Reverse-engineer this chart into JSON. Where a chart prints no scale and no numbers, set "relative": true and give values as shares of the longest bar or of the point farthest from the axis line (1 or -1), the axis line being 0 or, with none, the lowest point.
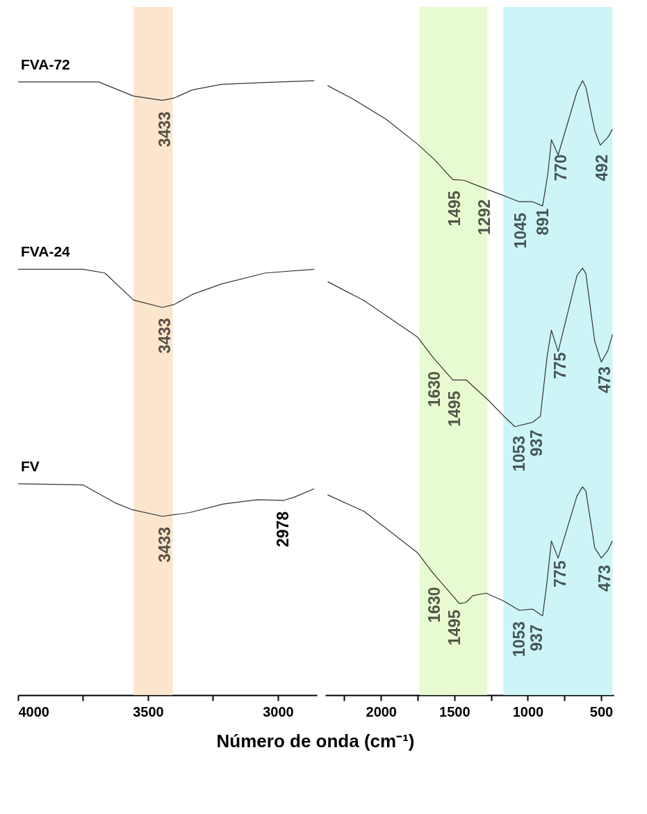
{
  "chart_data": [
    {
      "type": "line",
      "relative": true,
      "xlabel": "Número de onda (cm⁻¹)",
      "xlim": [
        4000,
        2850
      ],
      "xticks": [
        4000,
        {
          "value": 3750,
          "label": null
        },
        3500,
        {
          "value": 3250,
          "label": null
        },
        3000
      ],
      "tick_labels": "x",
      "grid": false,
      "bands": [
        {
          "axis": "x",
          "from": 3555,
          "to": 3405,
          "color": "#fbe3c8"
        }
      ],
      "series": [
        {
          "name": "FVA-72",
          "color": "#333333",
          "x": [
            4000,
            3690,
            3556,
            3445,
            3398,
            3330,
            3218,
            3049,
            2860
          ],
          "values": [
            0.998,
            0.998,
            0.975,
            0.968,
            0.972,
            0.985,
            0.994,
            0.997,
            1
          ]
        },
        {
          "name": "FVA-24",
          "color": "#333333",
          "x": [
            4000,
            3750,
            3666,
            3556,
            3445,
            3398,
            3330,
            3218,
            3049,
            2860
          ],
          "values": [
            0.693,
            0.693,
            0.687,
            0.643,
            0.631,
            0.636,
            0.652,
            0.669,
            0.687,
            0.693
          ]
        },
        {
          "name": "FV",
          "color": "#333333",
          "x": [
            4000,
            3749,
            3627,
            3562,
            3445,
            3341,
            3211,
            3081,
            2977,
            2938,
            2860
          ],
          "values": [
            0.344,
            0.342,
            0.313,
            0.302,
            0.291,
            0.297,
            0.311,
            0.318,
            0.317,
            0.322,
            0.336
          ]
        }
      ],
      "annotations": [
        {
          "text": "3433",
          "x": 3433,
          "y": 0.968
        },
        {
          "text": "3433",
          "x": 3433,
          "y": 0.632
        },
        {
          "text": "3433",
          "x": 3433,
          "y": 0.292
        },
        {
          "text": "2978",
          "x": 2978,
          "y": 0.317
        }
      ]
    },
    {
      "type": "line",
      "relative": true,
      "xlim": [
        2380,
        415
      ],
      "xticks": [
        {
          "value": 2250,
          "label": null
        },
        2000,
        {
          "value": 1750,
          "label": null
        },
        1500,
        {
          "value": 1250,
          "label": null
        },
        1000,
        {
          "value": 750,
          "label": null
        },
        500
      ],
      "tick_labels": "x",
      "grid": false,
      "bands": [
        {
          "axis": "x",
          "from": 1737,
          "to": 1275,
          "color": "#e4f9cc"
        },
        {
          "axis": "x",
          "from": 1166,
          "to": 423,
          "color": "#c8f4f6"
        }
      ],
      "series": [
        {
          "color": "#333333",
          "x": [
            2364,
            2190,
            1964,
            1752,
            1633,
            1511,
            1435,
            1329,
            1208,
            1058,
            967,
            899,
            863,
            839,
            793,
            665,
            627,
            604,
            544,
            506,
            454,
            423
          ],
          "values": [
            0.992,
            0.97,
            0.937,
            0.897,
            0.871,
            0.839,
            0.838,
            0.828,
            0.817,
            0.803,
            0.803,
            0.796,
            0.849,
            0.904,
            0.879,
            0.982,
            1,
            0.989,
            0.919,
            0.895,
            0.908,
            0.921
          ]
        },
        {
          "color": "#333333",
          "x": [
            2364,
            2115,
            1752,
            1647,
            1511,
            1420,
            1269,
            1163,
            1088,
            967,
            914,
            869,
            839,
            793,
            665,
            627,
            604,
            544,
            499,
            454,
            423
          ],
          "values": [
            0.673,
            0.642,
            0.583,
            0.55,
            0.513,
            0.513,
            0.48,
            0.454,
            0.437,
            0.444,
            0.454,
            0.55,
            0.594,
            0.559,
            0.683,
            0.695,
            0.686,
            0.576,
            0.542,
            0.561,
            0.587
          ]
        },
        {
          "color": "#333333",
          "x": [
            2364,
            2115,
            1752,
            1647,
            1465,
            1420,
            1375,
            1284,
            1163,
            1058,
            967,
            899,
            869,
            839,
            793,
            665,
            627,
            604,
            544,
            499,
            454,
            423
          ],
          "values": [
            0.326,
            0.299,
            0.232,
            0.199,
            0.149,
            0.151,
            0.162,
            0.166,
            0.153,
            0.138,
            0.14,
            0.129,
            0.184,
            0.251,
            0.223,
            0.324,
            0.339,
            0.332,
            0.24,
            0.223,
            0.236,
            0.251
          ]
        }
      ],
      "annotations": [
        {
          "text": "1495",
          "x": 1495,
          "y": 0.839
        },
        {
          "text": "1292",
          "x": 1292,
          "y": 0.825
        },
        {
          "text": "1045",
          "x": 1045,
          "y": 0.803
        },
        {
          "text": "891",
          "x": 891,
          "y": 0.81
        },
        {
          "text": "770",
          "x": 770,
          "y": 0.898
        },
        {
          "text": "492",
          "x": 492,
          "y": 0.898
        },
        {
          "text": "1630",
          "x": 1630,
          "y": 0.545
        },
        {
          "text": "1495",
          "x": 1495,
          "y": 0.513
        },
        {
          "text": "1053",
          "x": 1053,
          "y": 0.44
        },
        {
          "text": "937",
          "x": 937,
          "y": 0.45
        },
        {
          "text": "775",
          "x": 775,
          "y": 0.576
        },
        {
          "text": "473",
          "x": 473,
          "y": 0.553
        },
        {
          "text": "1630",
          "x": 1630,
          "y": 0.194
        },
        {
          "text": "1495",
          "x": 1495,
          "y": 0.157
        },
        {
          "text": "1053",
          "x": 1053,
          "y": 0.138
        },
        {
          "text": "937",
          "x": 937,
          "y": 0.133
        },
        {
          "text": "775",
          "x": 775,
          "y": 0.237
        },
        {
          "text": "473",
          "x": 473,
          "y": 0.23
        }
      ]
    }
  ]
}
